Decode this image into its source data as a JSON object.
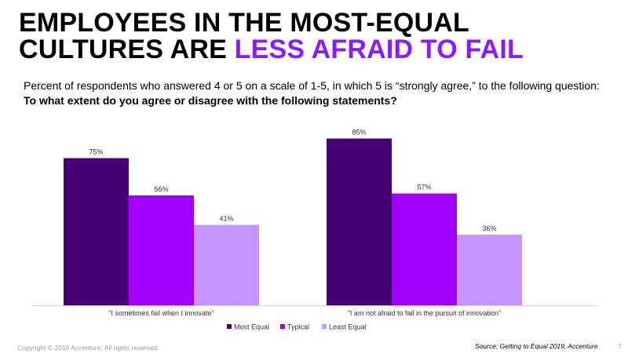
{
  "slide": {
    "title_line1": "EMPLOYEES IN THE MOST-EQUAL",
    "title_line2_prefix": "CULTURES ARE ",
    "title_line2_accent": "LESS AFRAID TO FAIL",
    "subtitle_text": "Percent of respondents who answered 4 or 5 on a scale of 1-5, in which 5 is “strongly agree,” to the following question: ",
    "subtitle_question": "To what extent do you agree or disagree with the following statements?",
    "copyright": "Copyright © 2019 Accenture. All rights reserved.",
    "source": "Source: Getting to Equal 2019, Accenture",
    "page_number": "7"
  },
  "colors": {
    "accent": "#8a1aff",
    "most_equal": "#460073",
    "typical": "#a100ff",
    "least_equal": "#c693ff"
  },
  "chart_data": {
    "type": "bar",
    "categories": [
      "“I sometimes fail when I innovate”",
      "“I am not afraid to fail in the pursuit of innovation”"
    ],
    "series": [
      {
        "name": "Most Equal",
        "values": [
          75,
          85
        ],
        "labels": [
          "75%",
          "85%"
        ]
      },
      {
        "name": "Typical",
        "values": [
          56,
          57
        ],
        "labels": [
          "56%",
          "57%"
        ]
      },
      {
        "name": "Least Equal",
        "values": [
          41,
          36
        ],
        "labels": [
          "41%",
          "36%"
        ]
      }
    ],
    "ylim": [
      0,
      100
    ],
    "grid": false,
    "legend": "bottom-center"
  }
}
